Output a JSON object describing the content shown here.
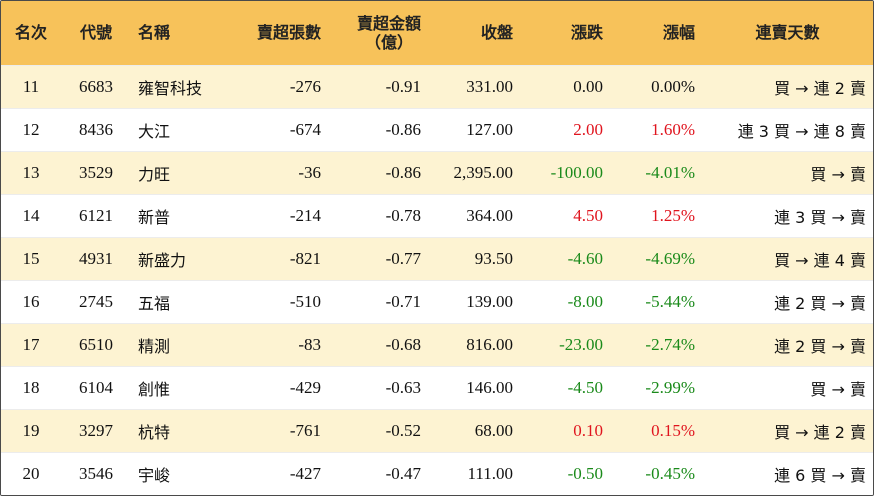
{
  "headers": {
    "rank": "名次",
    "code": "代號",
    "name": "名稱",
    "net_sell_lots": "賣超張數",
    "net_sell_amount_line1": "賣超金額",
    "net_sell_amount_line2": "（億）",
    "close": "收盤",
    "change": "漲跌",
    "change_pct": "漲幅",
    "streak": "連賣天數"
  },
  "colors": {
    "header_bg": "#f7c25a",
    "odd_row_bg": "#fdf3d2",
    "up": "#e0141e",
    "down": "#1a8a1a"
  },
  "chart_data": {
    "type": "table",
    "columns": [
      "名次",
      "代號",
      "名稱",
      "賣超張數",
      "賣超金額（億）",
      "收盤",
      "漲跌",
      "漲幅",
      "連賣天數"
    ],
    "rows": [
      {
        "rank": "11",
        "code": "6683",
        "name": "雍智科技",
        "lots": "-276",
        "amount": "-0.91",
        "close": "331.00",
        "change": "0.00",
        "pct": "0.00%",
        "dir": "flat",
        "streak": "買 → 連 2 賣"
      },
      {
        "rank": "12",
        "code": "8436",
        "name": "大江",
        "lots": "-674",
        "amount": "-0.86",
        "close": "127.00",
        "change": "2.00",
        "pct": "1.60%",
        "dir": "up",
        "streak": "連 3 買 → 連 8 賣"
      },
      {
        "rank": "13",
        "code": "3529",
        "name": "力旺",
        "lots": "-36",
        "amount": "-0.86",
        "close": "2,395.00",
        "change": "-100.00",
        "pct": "-4.01%",
        "dir": "down",
        "streak": "買 → 賣"
      },
      {
        "rank": "14",
        "code": "6121",
        "name": "新普",
        "lots": "-214",
        "amount": "-0.78",
        "close": "364.00",
        "change": "4.50",
        "pct": "1.25%",
        "dir": "up",
        "streak": "連 3 買 → 賣"
      },
      {
        "rank": "15",
        "code": "4931",
        "name": "新盛力",
        "lots": "-821",
        "amount": "-0.77",
        "close": "93.50",
        "change": "-4.60",
        "pct": "-4.69%",
        "dir": "down",
        "streak": "買 → 連 4 賣"
      },
      {
        "rank": "16",
        "code": "2745",
        "name": "五福",
        "lots": "-510",
        "amount": "-0.71",
        "close": "139.00",
        "change": "-8.00",
        "pct": "-5.44%",
        "dir": "down",
        "streak": "連 2 買 → 賣"
      },
      {
        "rank": "17",
        "code": "6510",
        "name": "精測",
        "lots": "-83",
        "amount": "-0.68",
        "close": "816.00",
        "change": "-23.00",
        "pct": "-2.74%",
        "dir": "down",
        "streak": "連 2 買 → 賣"
      },
      {
        "rank": "18",
        "code": "6104",
        "name": "創惟",
        "lots": "-429",
        "amount": "-0.63",
        "close": "146.00",
        "change": "-4.50",
        "pct": "-2.99%",
        "dir": "down",
        "streak": "買 → 賣"
      },
      {
        "rank": "19",
        "code": "3297",
        "name": "杭特",
        "lots": "-761",
        "amount": "-0.52",
        "close": "68.00",
        "change": "0.10",
        "pct": "0.15%",
        "dir": "up",
        "streak": "買 → 連 2 賣"
      },
      {
        "rank": "20",
        "code": "3546",
        "name": "宇峻",
        "lots": "-427",
        "amount": "-0.47",
        "close": "111.00",
        "change": "-0.50",
        "pct": "-0.45%",
        "dir": "down",
        "streak": "連 6 買 → 賣"
      }
    ]
  }
}
